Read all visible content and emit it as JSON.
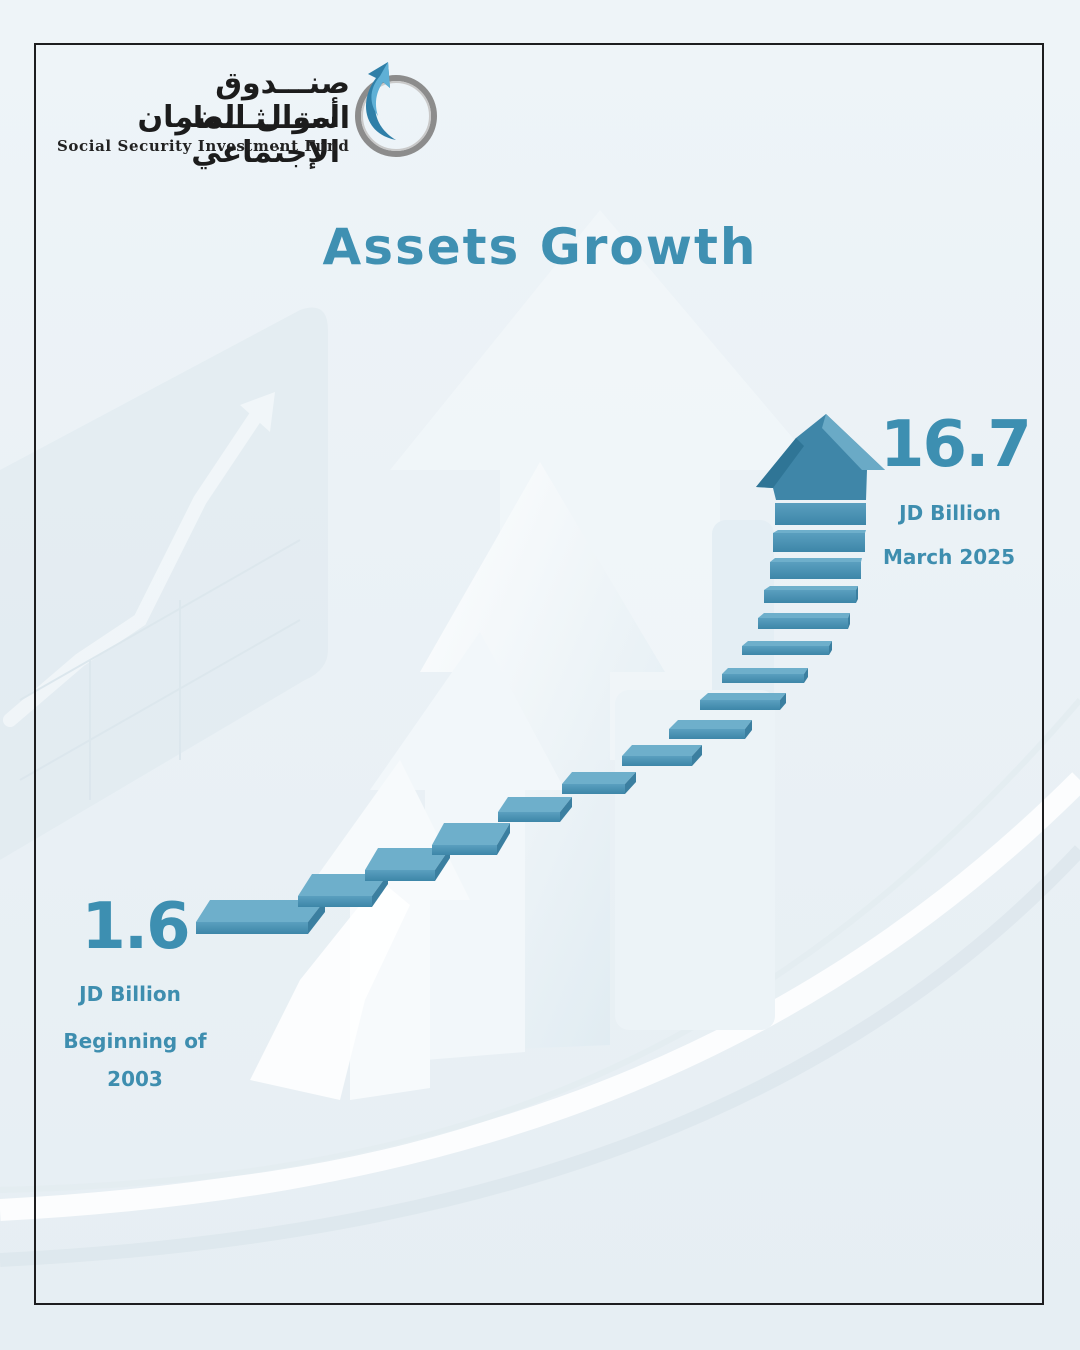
{
  "brand": {
    "name_ar_line1": "صنـــدوق استـــثـــمار",
    "name_ar_line2": "أموال الضمان الإجتماعي",
    "name_en": "Social Security Investment Fund",
    "logo_icon": "circular-arrow-logo-icon"
  },
  "title": "Assets Growth",
  "growth": {
    "start": {
      "value": "1.6",
      "unit": "JD Billion",
      "period": "Beginning of 2003"
    },
    "end": {
      "value": "16.7",
      "unit": "JD Billion",
      "period": "March 2025"
    }
  },
  "colors": {
    "accent": "#3f90b2",
    "step_top": "#4b93b3",
    "step_side": "#6fb0cc",
    "background": "#eef4f8",
    "frame": "#1d1d1f"
  }
}
